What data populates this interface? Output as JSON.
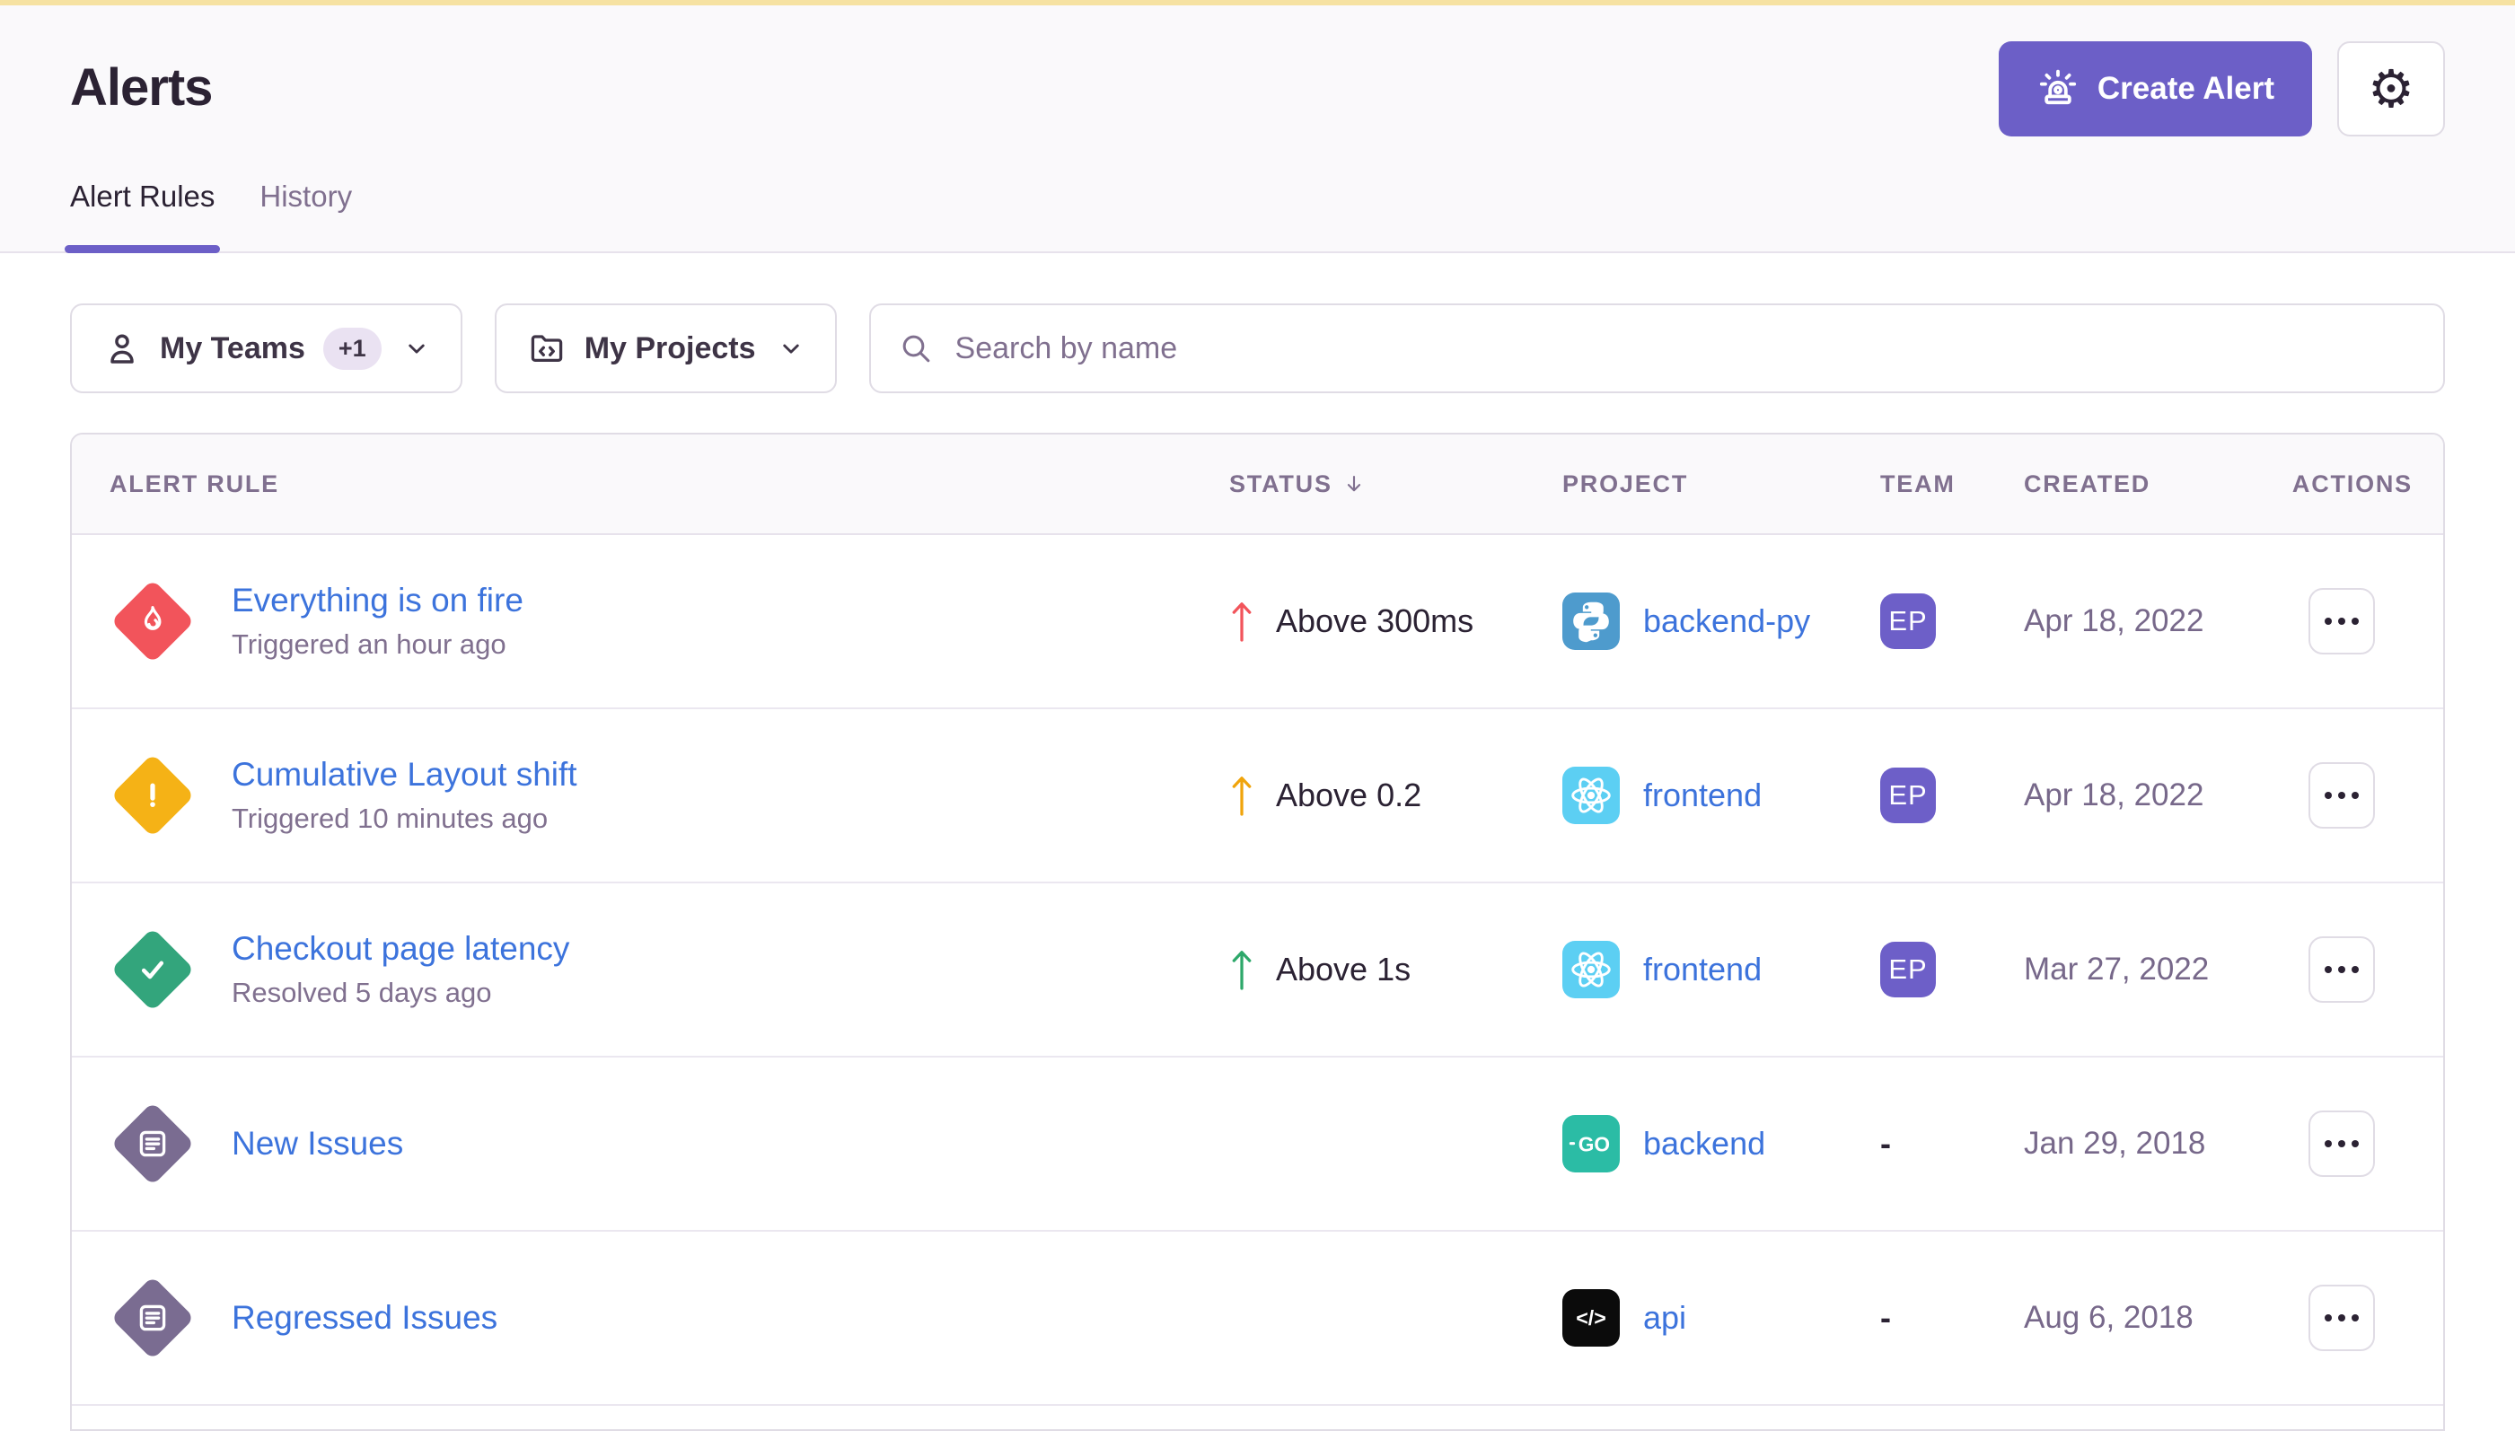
{
  "page": {
    "title": "Alerts"
  },
  "header": {
    "create_alert_label": "Create Alert",
    "gear_glyph": "⚙"
  },
  "tabs": [
    {
      "label": "Alert Rules",
      "active": true
    },
    {
      "label": "History",
      "active": false
    }
  ],
  "filters": {
    "teams_label": "My Teams",
    "teams_extra_badge": "+1",
    "projects_label": "My Projects",
    "search_placeholder": "Search by name"
  },
  "table": {
    "columns": [
      "ALERT RULE",
      "STATUS",
      "PROJECT",
      "TEAM",
      "CREATED",
      "ACTIONS"
    ],
    "sorted_by": "STATUS",
    "sort_direction": "desc",
    "rows": [
      {
        "name": "Everything is on fire",
        "subtitle": "Triggered an hour ago",
        "severity": "critical",
        "severity_icon": "fire",
        "severity_color": "#F2545B",
        "status": "Above 300ms",
        "status_arrow_color": "#F2545B",
        "project": "backend-py",
        "platform_icon": "python",
        "project_color": "#4E9BCD",
        "team": "EP",
        "created": "Apr 18, 2022"
      },
      {
        "name": "Cumulative Layout shift",
        "subtitle": "Triggered 10 minutes ago",
        "severity": "warning",
        "severity_icon": "exclaim",
        "severity_color": "#F5B216",
        "status": "Above 0.2",
        "status_arrow_color": "#F0A40B",
        "project": "frontend",
        "platform_icon": "react",
        "project_color": "#5CCFF3",
        "team": "EP",
        "created": "Apr 18, 2022"
      },
      {
        "name": "Checkout page latency",
        "subtitle": "Resolved 5 days ago",
        "severity": "resolved",
        "severity_icon": "check",
        "severity_color": "#33A57C",
        "status": "Above 1s",
        "status_arrow_color": "#2DA86A",
        "project": "frontend",
        "platform_icon": "react",
        "project_color": "#5CCFF3",
        "team": "EP",
        "created": "Mar 27, 2022"
      },
      {
        "name": "New Issues",
        "subtitle": "",
        "severity": "issue",
        "severity_icon": "issues",
        "severity_color": "#7A6C91",
        "status": "",
        "status_arrow_color": "",
        "project": "backend",
        "platform_icon": "go",
        "project_color": "#2BBCA5",
        "team": "-",
        "created": "Jan 29, 2018"
      },
      {
        "name": "Regressed Issues",
        "subtitle": "",
        "severity": "issue",
        "severity_icon": "issues",
        "severity_color": "#7A6C91",
        "status": "",
        "status_arrow_color": "",
        "project": "api",
        "platform_icon": "code",
        "project_color": "#0B0B0B",
        "team": "-",
        "created": "Aug 6, 2018"
      }
    ]
  },
  "theme": {
    "accent": "#6C5FC7",
    "link": "#3C73DC",
    "banner": "#F6E2A2",
    "muted": "#80708F",
    "dark": "#2B2233",
    "border": "#E0DCE5",
    "divider": "#E7E2EC",
    "row_line": "#EBE7F0",
    "bg": "#FAF9FB",
    "team_badge": "#6D5FC8"
  }
}
